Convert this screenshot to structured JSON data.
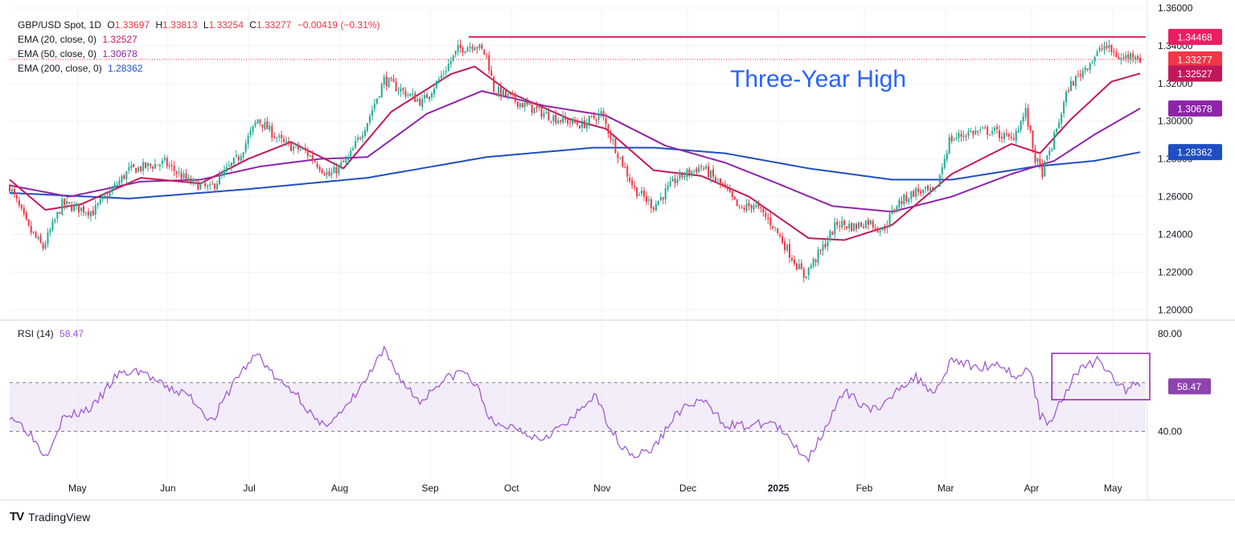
{
  "header": {
    "symbol": "GBP/USD Spot, 1D",
    "o_label": "O",
    "o": "1.33697",
    "h_label": "H",
    "h": "1.33813",
    "l_label": "L",
    "l": "1.33254",
    "c_label": "C",
    "c": "1.33277",
    "change": "−0.00419 (−0.31%)"
  },
  "indicators": [
    {
      "label": "EMA (20, close, 0)",
      "value": "1.32527",
      "color": "#c2185b"
    },
    {
      "label": "EMA (50, close, 0)",
      "value": "1.30678",
      "color": "#8e24aa"
    },
    {
      "label": "EMA (200, close, 0)",
      "value": "1.28362",
      "color": "#1e4fc2"
    }
  ],
  "rsi_header": {
    "label": "RSI (14)",
    "value": "58.47",
    "color": "#8e44ad"
  },
  "brand": {
    "logo": "TV",
    "name": "TradingView"
  },
  "colors": {
    "up": "#22ab94",
    "down": "#f23645",
    "resistance": "#e91e63",
    "annotation": "#2962ff",
    "rsi": "#9c4fd0"
  },
  "chart_data": [
    {
      "type": "candlestick",
      "title": "GBP/USD Spot, 1D",
      "annotation": "Three-Year High",
      "ylim": [
        1.195,
        1.36
      ],
      "y_ticks": [
        "1.36000",
        "1.34000",
        "1.32000",
        "1.30000",
        "1.28000",
        "1.26000",
        "1.24000",
        "1.22000",
        "1.20000"
      ],
      "x_labels": [
        "May",
        "Jun",
        "Jul",
        "Aug",
        "Sep",
        "Oct",
        "Nov",
        "Dec",
        "2025",
        "Feb",
        "Mar",
        "Apr",
        "May"
      ],
      "resistance": 1.34468,
      "last_close": 1.33277,
      "price_path": [
        {
          "t": 0,
          "v": 1.2655
        },
        {
          "t": 8,
          "v": 1.243
        },
        {
          "t": 14,
          "v": 1.233
        },
        {
          "t": 22,
          "v": 1.256
        },
        {
          "t": 35,
          "v": 1.252
        },
        {
          "t": 50,
          "v": 1.274
        },
        {
          "t": 65,
          "v": 1.278
        },
        {
          "t": 75,
          "v": 1.268
        },
        {
          "t": 84,
          "v": 1.264
        },
        {
          "t": 96,
          "v": 1.281
        },
        {
          "t": 104,
          "v": 1.301
        },
        {
          "t": 115,
          "v": 1.288
        },
        {
          "t": 124,
          "v": 1.284
        },
        {
          "t": 134,
          "v": 1.271
        },
        {
          "t": 142,
          "v": 1.28
        },
        {
          "t": 150,
          "v": 1.3
        },
        {
          "t": 157,
          "v": 1.322
        },
        {
          "t": 166,
          "v": 1.315
        },
        {
          "t": 173,
          "v": 1.31
        },
        {
          "t": 180,
          "v": 1.322
        },
        {
          "t": 188,
          "v": 1.338
        },
        {
          "t": 195,
          "v": 1.341
        },
        {
          "t": 200,
          "v": 1.335
        },
        {
          "t": 203,
          "v": 1.317
        },
        {
          "t": 215,
          "v": 1.309
        },
        {
          "t": 228,
          "v": 1.302
        },
        {
          "t": 240,
          "v": 1.298
        },
        {
          "t": 248,
          "v": 1.304
        },
        {
          "t": 255,
          "v": 1.283
        },
        {
          "t": 262,
          "v": 1.264
        },
        {
          "t": 270,
          "v": 1.255
        },
        {
          "t": 280,
          "v": 1.27
        },
        {
          "t": 290,
          "v": 1.276
        },
        {
          "t": 300,
          "v": 1.264
        },
        {
          "t": 306,
          "v": 1.253
        },
        {
          "t": 312,
          "v": 1.256
        },
        {
          "t": 320,
          "v": 1.245
        },
        {
          "t": 328,
          "v": 1.228
        },
        {
          "t": 333,
          "v": 1.218
        },
        {
          "t": 340,
          "v": 1.231
        },
        {
          "t": 347,
          "v": 1.246
        },
        {
          "t": 354,
          "v": 1.244
        },
        {
          "t": 360,
          "v": 1.247
        },
        {
          "t": 366,
          "v": 1.242
        },
        {
          "t": 372,
          "v": 1.256
        },
        {
          "t": 380,
          "v": 1.263
        },
        {
          "t": 388,
          "v": 1.262
        },
        {
          "t": 394,
          "v": 1.29
        },
        {
          "t": 402,
          "v": 1.294
        },
        {
          "t": 412,
          "v": 1.295
        },
        {
          "t": 420,
          "v": 1.29
        },
        {
          "t": 426,
          "v": 1.305
        },
        {
          "t": 430,
          "v": 1.28
        },
        {
          "t": 433,
          "v": 1.273
        },
        {
          "t": 437,
          "v": 1.287
        },
        {
          "t": 444,
          "v": 1.318
        },
        {
          "t": 452,
          "v": 1.33
        },
        {
          "t": 459,
          "v": 1.34
        },
        {
          "t": 466,
          "v": 1.333
        },
        {
          "t": 472,
          "v": 1.336
        },
        {
          "t": 474,
          "v": 1.3328
        }
      ],
      "ema_20": [
        [
          0,
          1.269
        ],
        [
          15,
          1.253
        ],
        [
          30,
          1.256
        ],
        [
          55,
          1.27
        ],
        [
          80,
          1.267
        ],
        [
          100,
          1.28
        ],
        [
          118,
          1.289
        ],
        [
          140,
          1.275
        ],
        [
          160,
          1.305
        ],
        [
          185,
          1.325
        ],
        [
          195,
          1.329
        ],
        [
          210,
          1.315
        ],
        [
          235,
          1.301
        ],
        [
          250,
          1.296
        ],
        [
          270,
          1.274
        ],
        [
          290,
          1.271
        ],
        [
          310,
          1.26
        ],
        [
          335,
          1.238
        ],
        [
          350,
          1.237
        ],
        [
          370,
          1.245
        ],
        [
          395,
          1.272
        ],
        [
          420,
          1.288
        ],
        [
          432,
          1.283
        ],
        [
          445,
          1.301
        ],
        [
          462,
          1.321
        ],
        [
          474,
          1.3253
        ]
      ],
      "ema_50": [
        [
          0,
          1.266
        ],
        [
          25,
          1.26
        ],
        [
          55,
          1.268
        ],
        [
          80,
          1.269
        ],
        [
          105,
          1.276
        ],
        [
          130,
          1.28
        ],
        [
          150,
          1.281
        ],
        [
          175,
          1.304
        ],
        [
          198,
          1.316
        ],
        [
          225,
          1.308
        ],
        [
          250,
          1.303
        ],
        [
          275,
          1.287
        ],
        [
          300,
          1.278
        ],
        [
          320,
          1.268
        ],
        [
          345,
          1.255
        ],
        [
          370,
          1.252
        ],
        [
          395,
          1.26
        ],
        [
          420,
          1.272
        ],
        [
          438,
          1.279
        ],
        [
          455,
          1.293
        ],
        [
          474,
          1.3068
        ]
      ],
      "ema_200": [
        [
          0,
          1.262
        ],
        [
          50,
          1.259
        ],
        [
          100,
          1.264
        ],
        [
          150,
          1.27
        ],
        [
          200,
          1.281
        ],
        [
          245,
          1.286
        ],
        [
          270,
          1.286
        ],
        [
          300,
          1.283
        ],
        [
          335,
          1.275
        ],
        [
          370,
          1.269
        ],
        [
          395,
          1.269
        ],
        [
          430,
          1.276
        ],
        [
          455,
          1.279
        ],
        [
          474,
          1.2836
        ]
      ],
      "n_bars": 475
    },
    {
      "type": "line",
      "title": "RSI (14)",
      "ylim": [
        20,
        85
      ],
      "y_ticks": [
        "80.00",
        "40.00"
      ],
      "upper_band": 60,
      "lower_band": 40,
      "last_value": 58.47,
      "values_path": [
        {
          "t": 0,
          "v": 47
        },
        {
          "t": 8,
          "v": 40
        },
        {
          "t": 15,
          "v": 30
        },
        {
          "t": 22,
          "v": 45
        },
        {
          "t": 35,
          "v": 50
        },
        {
          "t": 45,
          "v": 63
        },
        {
          "t": 55,
          "v": 65
        },
        {
          "t": 65,
          "v": 58
        },
        {
          "t": 75,
          "v": 55
        },
        {
          "t": 85,
          "v": 44
        },
        {
          "t": 95,
          "v": 62
        },
        {
          "t": 104,
          "v": 72
        },
        {
          "t": 112,
          "v": 61
        },
        {
          "t": 120,
          "v": 56
        },
        {
          "t": 130,
          "v": 42
        },
        {
          "t": 140,
          "v": 48
        },
        {
          "t": 150,
          "v": 62
        },
        {
          "t": 157,
          "v": 73
        },
        {
          "t": 165,
          "v": 60
        },
        {
          "t": 172,
          "v": 52
        },
        {
          "t": 180,
          "v": 60
        },
        {
          "t": 190,
          "v": 65
        },
        {
          "t": 196,
          "v": 58
        },
        {
          "t": 203,
          "v": 42
        },
        {
          "t": 212,
          "v": 42
        },
        {
          "t": 222,
          "v": 37
        },
        {
          "t": 235,
          "v": 44
        },
        {
          "t": 245,
          "v": 55
        },
        {
          "t": 255,
          "v": 36
        },
        {
          "t": 262,
          "v": 30
        },
        {
          "t": 270,
          "v": 33
        },
        {
          "t": 280,
          "v": 48
        },
        {
          "t": 290,
          "v": 53
        },
        {
          "t": 300,
          "v": 43
        },
        {
          "t": 310,
          "v": 42
        },
        {
          "t": 320,
          "v": 44
        },
        {
          "t": 328,
          "v": 35
        },
        {
          "t": 335,
          "v": 29
        },
        {
          "t": 342,
          "v": 42
        },
        {
          "t": 350,
          "v": 56
        },
        {
          "t": 358,
          "v": 51
        },
        {
          "t": 365,
          "v": 48
        },
        {
          "t": 372,
          "v": 58
        },
        {
          "t": 380,
          "v": 62
        },
        {
          "t": 388,
          "v": 56
        },
        {
          "t": 395,
          "v": 70
        },
        {
          "t": 405,
          "v": 66
        },
        {
          "t": 415,
          "v": 68
        },
        {
          "t": 422,
          "v": 62
        },
        {
          "t": 428,
          "v": 66
        },
        {
          "t": 432,
          "v": 46
        },
        {
          "t": 436,
          "v": 44
        },
        {
          "t": 442,
          "v": 55
        },
        {
          "t": 448,
          "v": 65
        },
        {
          "t": 456,
          "v": 69
        },
        {
          "t": 462,
          "v": 63
        },
        {
          "t": 468,
          "v": 56
        },
        {
          "t": 472,
          "v": 61
        },
        {
          "t": 474,
          "v": 58.47
        }
      ],
      "highlight_box": {
        "t_start": 437,
        "t_end": 474,
        "v_low": 53,
        "v_high": 72
      }
    }
  ]
}
